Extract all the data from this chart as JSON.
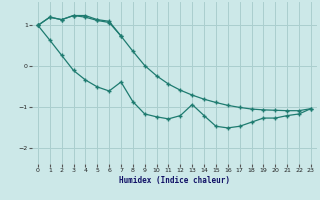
{
  "bg_color": "#cce8e8",
  "grid_color": "#aacece",
  "line_color": "#1e7b70",
  "xlabel": "Humidex (Indice chaleur)",
  "xlim": [
    -0.5,
    23.5
  ],
  "ylim": [
    -2.4,
    1.55
  ],
  "yticks": [
    -2,
    -1,
    0,
    1
  ],
  "xticks": [
    0,
    1,
    2,
    3,
    4,
    5,
    6,
    7,
    8,
    9,
    10,
    11,
    12,
    13,
    14,
    15,
    16,
    17,
    18,
    19,
    20,
    21,
    22,
    23
  ],
  "line1_x": [
    0,
    1,
    2,
    3,
    4,
    5,
    6,
    7
  ],
  "line1_y": [
    0.98,
    1.18,
    1.12,
    1.22,
    1.22,
    1.12,
    1.08,
    0.72
  ],
  "line2_x": [
    0,
    1,
    2,
    3,
    4,
    5,
    6,
    7,
    8,
    9,
    10,
    11,
    12,
    13,
    14,
    15,
    16,
    17,
    18,
    19,
    20,
    21,
    22,
    23
  ],
  "line2_y": [
    0.98,
    1.18,
    1.12,
    1.22,
    1.18,
    1.1,
    1.05,
    0.72,
    0.35,
    0.0,
    -0.25,
    -0.45,
    -0.6,
    -0.72,
    -0.82,
    -0.9,
    -0.97,
    -1.02,
    -1.06,
    -1.08,
    -1.09,
    -1.1,
    -1.1,
    -1.05
  ],
  "line3_x": [
    0,
    1,
    2,
    3,
    4,
    5,
    6,
    7,
    8,
    9,
    10,
    11,
    12,
    13,
    14,
    15,
    16,
    17,
    18,
    19,
    20,
    21,
    22,
    23
  ],
  "line3_y": [
    0.98,
    0.62,
    0.25,
    -0.12,
    -0.35,
    -0.52,
    -0.62,
    -0.4,
    -0.88,
    -1.18,
    -1.25,
    -1.3,
    -1.22,
    -0.95,
    -1.22,
    -1.48,
    -1.52,
    -1.48,
    -1.38,
    -1.28,
    -1.28,
    -1.22,
    -1.18,
    -1.05
  ]
}
